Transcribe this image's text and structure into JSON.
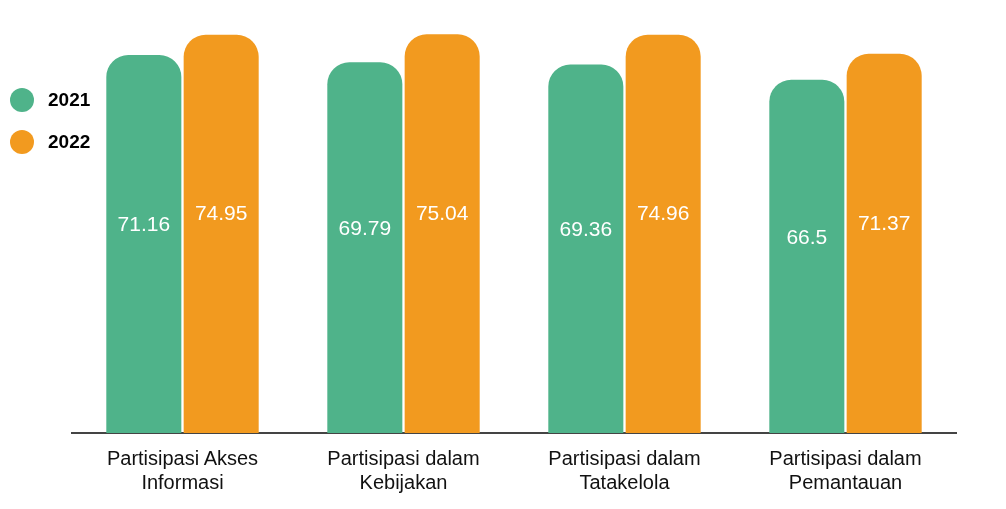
{
  "chart_data": {
    "type": "bar",
    "categories": [
      "Partisipasi Akses Informasi",
      "Partisipasi dalam Kebijakan",
      "Partisipasi dalam Tatakelola",
      "Partisipasi dalam Pemantauan"
    ],
    "series": [
      {
        "name": "2021",
        "color": "#4fb38a",
        "values": [
          71.16,
          69.79,
          69.36,
          66.5
        ]
      },
      {
        "name": "2022",
        "color": "#f29a1f",
        "values": [
          74.95,
          75.04,
          74.96,
          71.37
        ]
      }
    ],
    "data_labels": true,
    "grid": false,
    "legend": "top left"
  }
}
